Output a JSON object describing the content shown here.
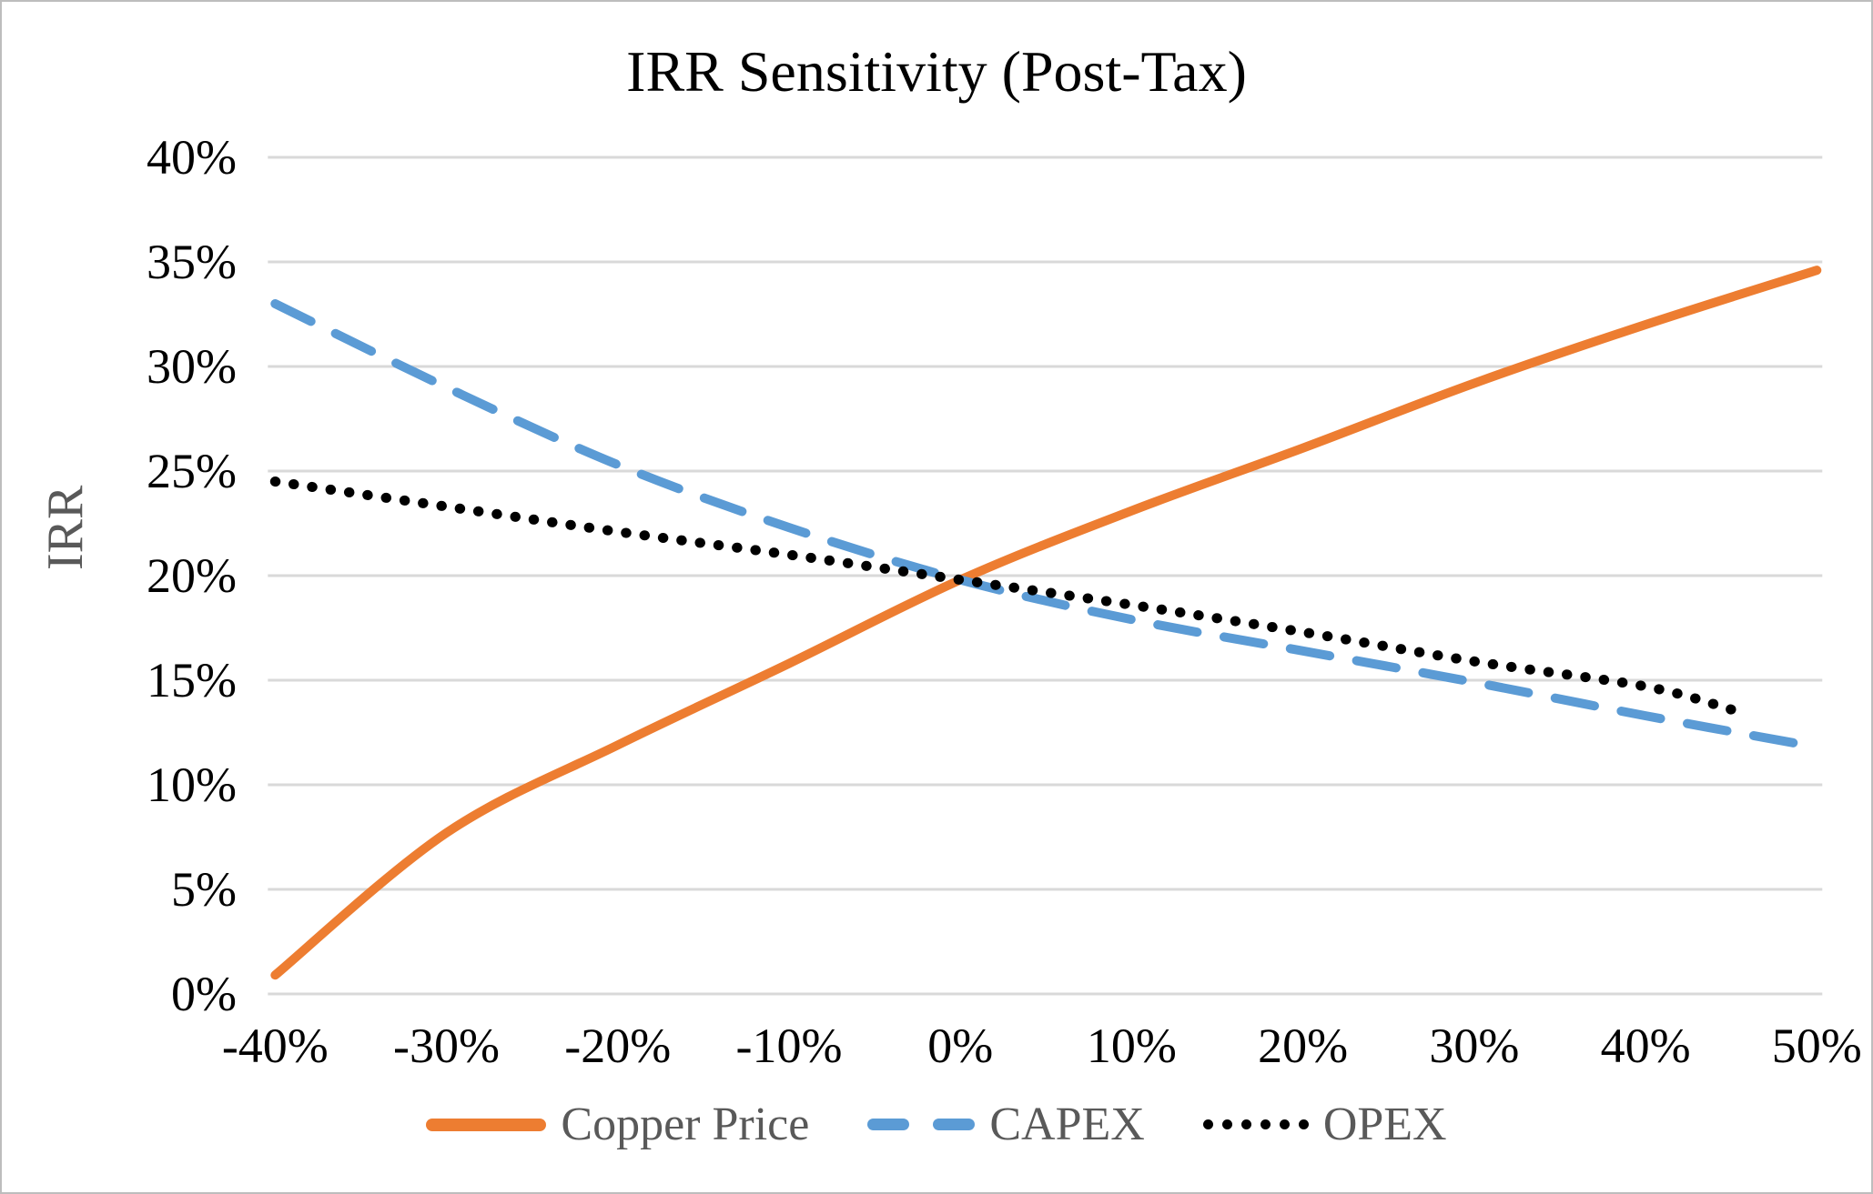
{
  "window": {
    "background": "#ffffff",
    "border_color": "#bdbdbd"
  },
  "chart_data": {
    "type": "line",
    "title": "IRR Sensitivity (Post-Tax)",
    "xlabel": "",
    "ylabel": "IRR",
    "xlim": [
      -40,
      50
    ],
    "ylim": [
      0,
      40
    ],
    "grid": "horizontal-only",
    "gridline_color": "#d9d9d9",
    "axis_text_color": "#000000",
    "muted_text_color": "#595959",
    "legend_position": "bottom-center",
    "x_ticks": {
      "values": [
        -40,
        -30,
        -20,
        -10,
        0,
        10,
        20,
        30,
        40,
        50
      ],
      "labels": [
        "-40%",
        "-30%",
        "-20%",
        "-10%",
        "0%",
        "10%",
        "20%",
        "30%",
        "40%",
        "50%"
      ]
    },
    "y_ticks": {
      "values": [
        0,
        5,
        10,
        15,
        20,
        25,
        30,
        35,
        40
      ],
      "labels": [
        "0%",
        "5%",
        "10%",
        "15%",
        "20%",
        "25%",
        "30%",
        "35%",
        "40%"
      ]
    },
    "series": [
      {
        "name": "Copper Price",
        "color": "#ED7D31",
        "style": "solid",
        "x": [
          -40,
          -30,
          -20,
          -10,
          0,
          10,
          20,
          30,
          40,
          50
        ],
        "y": [
          0.9,
          7.7,
          11.9,
          15.8,
          19.8,
          23.1,
          26.1,
          29.2,
          32.0,
          34.6
        ]
      },
      {
        "name": "CAPEX",
        "color": "#5B9BD5",
        "style": "dashed",
        "x": [
          -40,
          -30,
          -20,
          -10,
          0,
          10,
          20,
          30,
          40,
          50
        ],
        "y": [
          33.0,
          29.0,
          25.3,
          22.3,
          19.8,
          17.9,
          16.4,
          14.9,
          13.3,
          11.8
        ]
      },
      {
        "name": "OPEX",
        "color": "#000000",
        "style": "dotted",
        "x": [
          -40,
          -30,
          -20,
          -10,
          0,
          10,
          20,
          30,
          40,
          45
        ],
        "y": [
          24.5,
          23.3,
          22.1,
          21.0,
          19.8,
          18.6,
          17.3,
          15.9,
          14.7,
          13.6
        ]
      }
    ]
  }
}
